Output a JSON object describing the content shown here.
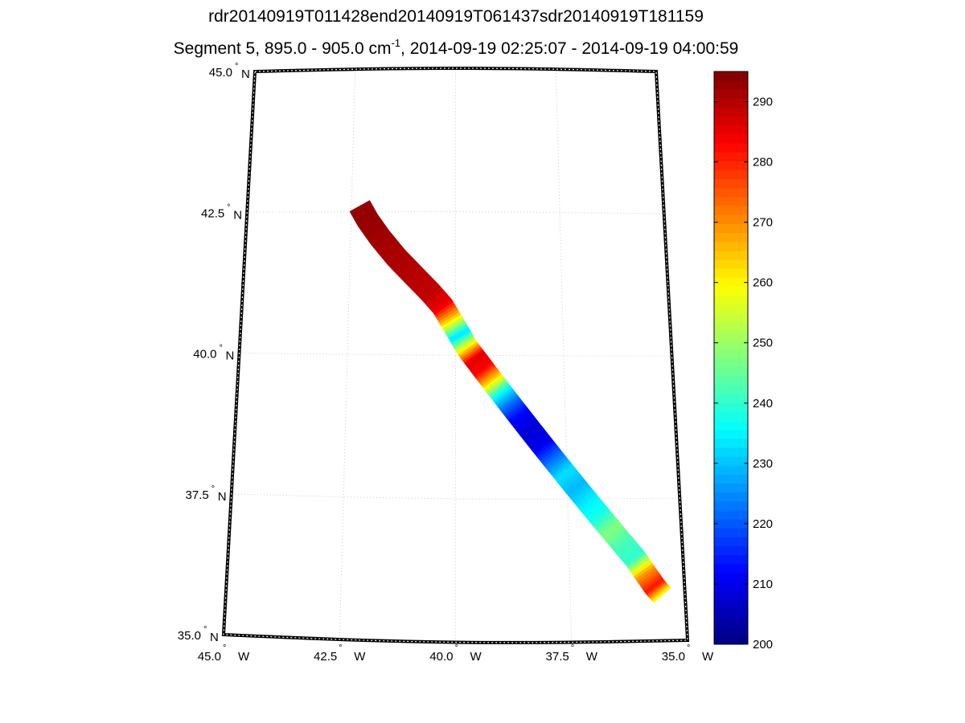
{
  "chart_data": {
    "type": "heatmap",
    "title": "rdr20140919T011428end20140919T061437sdr20140919T181159",
    "subtitle": {
      "prefix": "Segment 5, 895.0 - 905.0 cm",
      "superscript": "-1",
      "suffix": ", 2014-09-19 02:25:07 - 2014-09-19 04:00:59"
    },
    "map_projection": "conic",
    "lon_range": [
      -45.0,
      -35.0
    ],
    "lat_range": [
      35.0,
      45.0
    ],
    "grid": true,
    "lat_ticks": [
      {
        "value": 45.0,
        "label": "45.0",
        "hemisphere": "N"
      },
      {
        "value": 42.5,
        "label": "42.5",
        "hemisphere": "N"
      },
      {
        "value": 40.0,
        "label": "40.0",
        "hemisphere": "N"
      },
      {
        "value": 37.5,
        "label": "37.5",
        "hemisphere": "N"
      },
      {
        "value": 35.0,
        "label": "35.0",
        "hemisphere": "N"
      }
    ],
    "lon_ticks": [
      {
        "value": -45.0,
        "label": "45.0",
        "hemisphere": "W"
      },
      {
        "value": -42.5,
        "label": "42.5",
        "hemisphere": "W"
      },
      {
        "value": -40.0,
        "label": "40.0",
        "hemisphere": "W"
      },
      {
        "value": -37.5,
        "label": "37.5",
        "hemisphere": "W"
      },
      {
        "value": -35.0,
        "label": "35.0",
        "hemisphere": "W"
      }
    ],
    "degree_symbol": "°",
    "colorbar": {
      "colormap": "jet",
      "min": 200,
      "max": 295,
      "ticks": [
        200,
        210,
        220,
        230,
        240,
        250,
        260,
        270,
        280,
        290
      ]
    },
    "swath": {
      "width_deg": 0.45,
      "track": [
        {
          "lon": -42.3,
          "lat": 42.6,
          "value": 293
        },
        {
          "lon": -42.1,
          "lat": 42.35,
          "value": 293
        },
        {
          "lon": -41.8,
          "lat": 42.05,
          "value": 292
        },
        {
          "lon": -41.4,
          "lat": 41.7,
          "value": 291
        },
        {
          "lon": -41.0,
          "lat": 41.4,
          "value": 290
        },
        {
          "lon": -40.6,
          "lat": 41.1,
          "value": 289
        },
        {
          "lon": -40.3,
          "lat": 40.85,
          "value": 285
        },
        {
          "lon": -40.1,
          "lat": 40.6,
          "value": 262
        },
        {
          "lon": -39.9,
          "lat": 40.35,
          "value": 232
        },
        {
          "lon": -39.75,
          "lat": 40.15,
          "value": 258
        },
        {
          "lon": -39.55,
          "lat": 39.95,
          "value": 286
        },
        {
          "lon": -39.35,
          "lat": 39.75,
          "value": 283
        },
        {
          "lon": -39.15,
          "lat": 39.55,
          "value": 262
        },
        {
          "lon": -38.95,
          "lat": 39.35,
          "value": 236
        },
        {
          "lon": -38.75,
          "lat": 39.15,
          "value": 222
        },
        {
          "lon": -38.55,
          "lat": 38.95,
          "value": 212
        },
        {
          "lon": -38.3,
          "lat": 38.7,
          "value": 208
        },
        {
          "lon": -38.05,
          "lat": 38.45,
          "value": 210
        },
        {
          "lon": -37.8,
          "lat": 38.2,
          "value": 222
        },
        {
          "lon": -37.55,
          "lat": 37.95,
          "value": 233
        },
        {
          "lon": -37.3,
          "lat": 37.7,
          "value": 229
        },
        {
          "lon": -37.05,
          "lat": 37.45,
          "value": 234
        },
        {
          "lon": -36.8,
          "lat": 37.2,
          "value": 238
        },
        {
          "lon": -36.55,
          "lat": 36.95,
          "value": 248
        },
        {
          "lon": -36.3,
          "lat": 36.7,
          "value": 242
        },
        {
          "lon": -36.05,
          "lat": 36.45,
          "value": 240
        },
        {
          "lon": -35.85,
          "lat": 36.2,
          "value": 268
        },
        {
          "lon": -35.65,
          "lat": 35.95,
          "value": 282
        },
        {
          "lon": -35.5,
          "lat": 35.8,
          "value": 258
        }
      ]
    }
  }
}
